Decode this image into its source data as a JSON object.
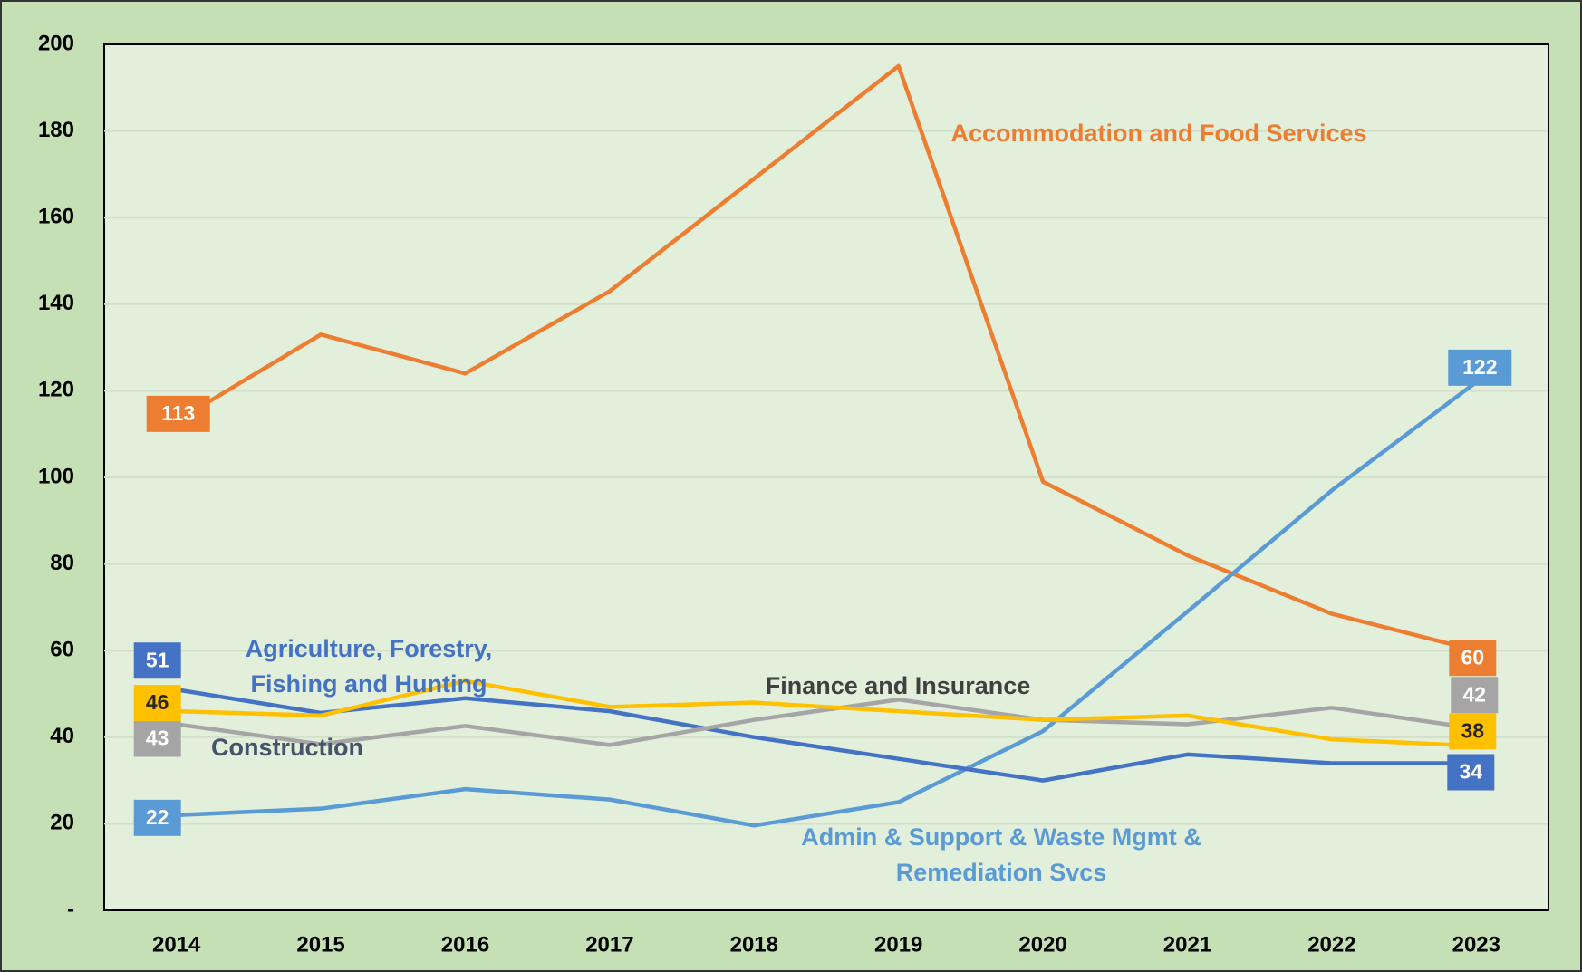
{
  "chart_data": {
    "type": "line",
    "categories": [
      "2014",
      "2015",
      "2016",
      "2017",
      "2018",
      "2019",
      "2020",
      "2021",
      "2022",
      "2023"
    ],
    "series": [
      {
        "name": "Accommodation and Food Services",
        "color": "#ED7D31",
        "values": [
          113,
          133,
          124,
          143,
          169,
          195,
          99,
          82,
          68.5,
          60
        ]
      },
      {
        "name": "Admin & Support & Waste Mgmt & Remediation Svcs",
        "color": "#5B9BD5",
        "values": [
          22,
          23.5,
          28,
          25.6,
          19.6,
          25,
          41.4,
          69,
          97,
          122
        ]
      },
      {
        "name": "Agriculture, Forestry, Fishing and Hunting",
        "color": "#4472C4",
        "values": [
          51,
          45.6,
          49,
          46,
          40,
          35,
          30,
          36,
          34,
          34
        ]
      },
      {
        "name": "Construction",
        "color": "#A5A5A5",
        "values": [
          43,
          38.4,
          42.6,
          38.2,
          44,
          48.7,
          44,
          43,
          46.8,
          42
        ]
      },
      {
        "name": "Finance and Insurance",
        "color": "#FFC000",
        "values": [
          46,
          45,
          53,
          47,
          48,
          46,
          44,
          45,
          39.5,
          38
        ]
      }
    ],
    "ylim": [
      0,
      200
    ],
    "yticks": [
      {
        "value": 0,
        "label": "-"
      },
      20,
      40,
      60,
      80,
      100,
      120,
      140,
      160,
      180,
      200
    ],
    "grid": true
  }
}
